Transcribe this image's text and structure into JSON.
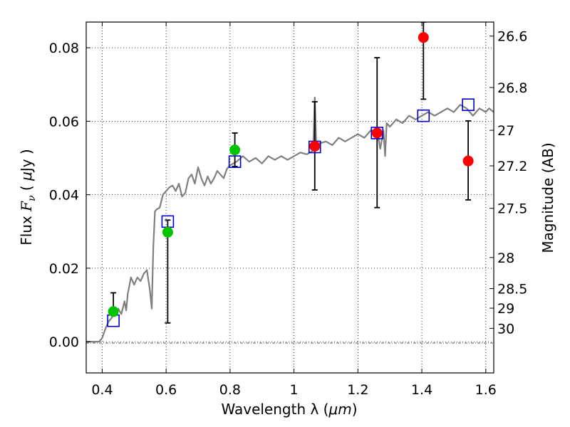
{
  "chart_data": {
    "type": "scatter",
    "title": "",
    "xlabel_text": "Wavelength  λ (",
    "xlabel_unit": "μm",
    "xlabel_close": ")",
    "ylabel_text": "Flux  ",
    "ylabel_var": "F",
    "ylabel_sub": "ν",
    "ylabel_unit_open": "  ( ",
    "ylabel_unit_mu": "μ",
    "ylabel_unit_rest": "Jy )",
    "y2label": "Magnitude (AB)",
    "xlim": [
      0.35,
      1.625
    ],
    "ylim": [
      -0.0085,
      0.087
    ],
    "grid": true,
    "x_ticks": [
      0.4,
      0.6,
      0.8,
      1.0,
      1.2,
      1.4,
      1.6
    ],
    "x_tick_labels": [
      "0.4",
      "0.6",
      "0.8",
      "1",
      "1.2",
      "1.4",
      "1.6"
    ],
    "y_ticks": [
      0.0,
      0.02,
      0.04,
      0.06,
      0.08
    ],
    "y_tick_labels": [
      "0.00",
      "0.02",
      "0.04",
      "0.06",
      "0.08"
    ],
    "mag_ticks": [
      26.6,
      26.8,
      27,
      27.2,
      27.5,
      28,
      28.5,
      29,
      30
    ],
    "mag_tick_labels": [
      "26.6",
      "26.8",
      "27",
      "27.2",
      "27.5",
      "28",
      "28.5",
      "29",
      "30"
    ],
    "colors": {
      "template": "#808080",
      "model": "#0000cc",
      "green": "#00c400",
      "red": "#ff0000",
      "errorbar": "#000000"
    },
    "template_spectrum": {
      "x": [
        0.35,
        0.39,
        0.4,
        0.41,
        0.42,
        0.43,
        0.44,
        0.45,
        0.46,
        0.47,
        0.475,
        0.48,
        0.49,
        0.5,
        0.51,
        0.52,
        0.53,
        0.54,
        0.545,
        0.55,
        0.555,
        0.56,
        0.565,
        0.57,
        0.58,
        0.59,
        0.6,
        0.61,
        0.62,
        0.63,
        0.64,
        0.65,
        0.66,
        0.67,
        0.68,
        0.69,
        0.7,
        0.71,
        0.72,
        0.73,
        0.74,
        0.75,
        0.76,
        0.77,
        0.78,
        0.79,
        0.8,
        0.82,
        0.84,
        0.86,
        0.88,
        0.9,
        0.92,
        0.94,
        0.96,
        0.98,
        1.0,
        1.02,
        1.04,
        1.06,
        1.065,
        1.07,
        1.08,
        1.1,
        1.12,
        1.14,
        1.16,
        1.18,
        1.2,
        1.22,
        1.24,
        1.26,
        1.27,
        1.28,
        1.285,
        1.29,
        1.3,
        1.32,
        1.34,
        1.36,
        1.38,
        1.4,
        1.42,
        1.44,
        1.46,
        1.48,
        1.5,
        1.52,
        1.54,
        1.56,
        1.58,
        1.6,
        1.61,
        1.625
      ],
      "y": [
        0.0,
        0.0,
        0.001,
        0.0035,
        0.0055,
        0.0065,
        0.0085,
        0.009,
        0.0075,
        0.011,
        0.0085,
        0.013,
        0.0175,
        0.0155,
        0.0175,
        0.0165,
        0.0185,
        0.0195,
        0.0165,
        0.0135,
        0.009,
        0.026,
        0.0355,
        0.036,
        0.0365,
        0.04,
        0.041,
        0.042,
        0.0425,
        0.041,
        0.043,
        0.0395,
        0.0405,
        0.0445,
        0.0455,
        0.043,
        0.0475,
        0.0445,
        0.0425,
        0.045,
        0.043,
        0.0445,
        0.0465,
        0.0455,
        0.0445,
        0.047,
        0.048,
        0.049,
        0.0505,
        0.049,
        0.05,
        0.0485,
        0.0505,
        0.0495,
        0.0505,
        0.0495,
        0.0505,
        0.0515,
        0.051,
        0.052,
        0.0665,
        0.053,
        0.054,
        0.0545,
        0.0535,
        0.0555,
        0.0545,
        0.0555,
        0.0565,
        0.0555,
        0.0575,
        0.0575,
        0.0525,
        0.0575,
        0.0505,
        0.0595,
        0.0585,
        0.0605,
        0.0595,
        0.0615,
        0.0605,
        0.0615,
        0.0625,
        0.0615,
        0.0625,
        0.0635,
        0.0625,
        0.0645,
        0.0635,
        0.0615,
        0.0635,
        0.0625,
        0.0635,
        0.0625
      ]
    },
    "model_points": {
      "x": [
        0.435,
        0.605,
        0.815,
        1.065,
        1.26,
        1.405,
        1.545
      ],
      "y": [
        0.0057,
        0.0327,
        0.049,
        0.053,
        0.0568,
        0.0615,
        0.0645
      ]
    },
    "observed_green": {
      "x": [
        0.435,
        0.605,
        0.815
      ],
      "y": [
        0.0082,
        0.0298,
        0.0522
      ],
      "err_low": [
        0.008,
        0.0051,
        0.0477
      ],
      "err_high": [
        0.0133,
        0.0331,
        0.0568
      ]
    },
    "observed_red": {
      "x": [
        1.065,
        1.26,
        1.405,
        1.545
      ],
      "y": [
        0.0532,
        0.0568,
        0.0828,
        0.0492
      ],
      "err_low": [
        0.0413,
        0.0365,
        0.066,
        0.0386
      ],
      "err_high": [
        0.0653,
        0.0773,
        0.087,
        0.0601
      ]
    }
  }
}
